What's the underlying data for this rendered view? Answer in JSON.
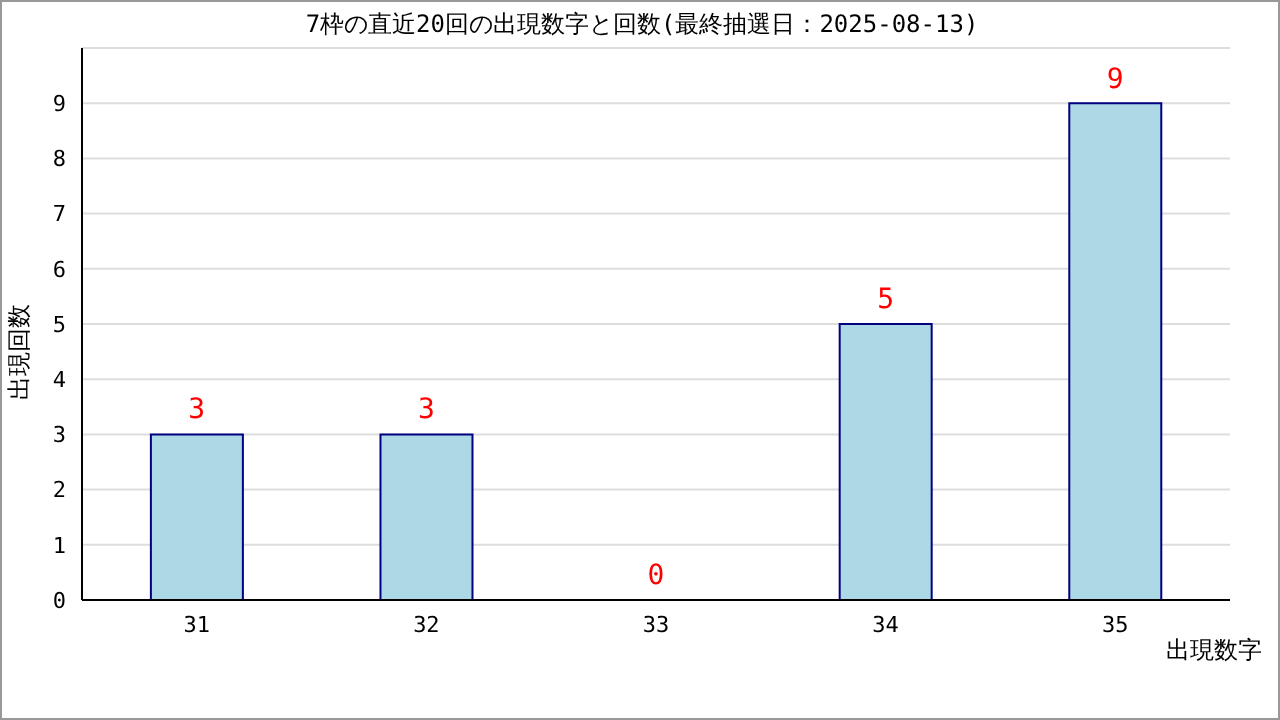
{
  "chart_data": {
    "type": "bar",
    "title": "7枠の直近20回の出現数字と回数(最終抽選日：2025-08-13)",
    "xlabel": "出現数字",
    "ylabel": "出現回数",
    "categories": [
      "31",
      "32",
      "33",
      "34",
      "35"
    ],
    "values": [
      3,
      3,
      0,
      5,
      9
    ],
    "color": "#add8e6",
    "ylim": [
      0,
      10
    ],
    "yticks": [
      0,
      1,
      2,
      3,
      4,
      5,
      6,
      7,
      8,
      9
    ],
    "grid": "y",
    "data_labels": true,
    "legend": false
  }
}
